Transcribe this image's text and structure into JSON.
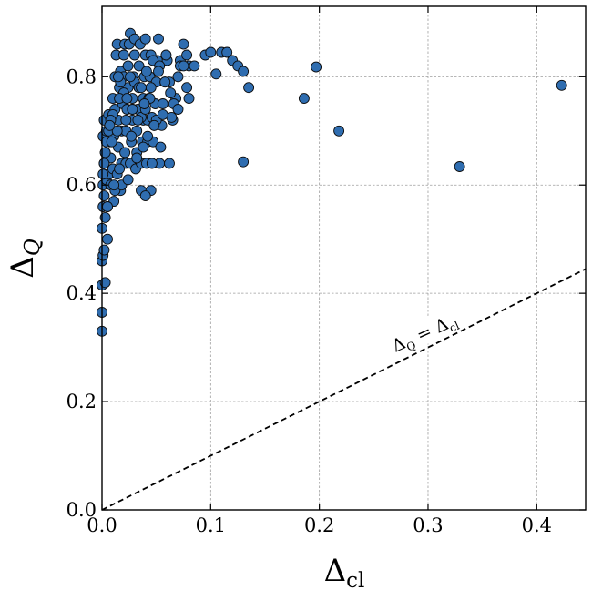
{
  "chart_data": {
    "type": "scatter",
    "xlabel_main": "Δ",
    "xlabel_sub": "cl",
    "ylabel_main": "Δ",
    "ylabel_sub": "Q",
    "annotation": {
      "text_main": "Δ",
      "text_sub_q": "Q",
      "text_eq": " = Δ",
      "text_sub_cl": "cl"
    },
    "xlim": [
      0,
      0.445
    ],
    "ylim": [
      0,
      0.93
    ],
    "xticks": [
      0.0,
      0.1,
      0.2,
      0.3,
      0.4
    ],
    "xtick_labels": [
      "0.0",
      "0.1",
      "0.2",
      "0.3",
      "0.4"
    ],
    "yticks": [
      0.0,
      0.2,
      0.4,
      0.6,
      0.8
    ],
    "ytick_labels": [
      "0.0",
      "0.2",
      "0.4",
      "0.6",
      "0.8"
    ],
    "grid": true,
    "reference_line": {
      "slope": 1,
      "intercept": 0,
      "style": "dashed",
      "color": "#000000"
    },
    "marker_color": "#2f6db0",
    "marker_edge_color": "#0d0d0d",
    "series": [
      {
        "x": [
          0.0,
          0.0,
          0.0,
          0.0,
          0.0,
          0.001,
          0.001,
          0.001,
          0.002,
          0.001,
          0.002,
          0.002,
          0.003,
          0.003,
          0.004,
          0.004,
          0.005,
          0.005,
          0.006,
          0.006,
          0.007,
          0.008,
          0.008,
          0.009,
          0.01,
          0.01,
          0.011,
          0.011,
          0.012,
          0.012,
          0.013,
          0.014,
          0.014,
          0.015,
          0.015,
          0.016,
          0.017,
          0.017,
          0.018,
          0.018,
          0.019,
          0.02,
          0.02,
          0.021,
          0.022,
          0.022,
          0.023,
          0.024,
          0.024,
          0.025,
          0.026,
          0.026,
          0.027,
          0.028,
          0.028,
          0.029,
          0.03,
          0.03,
          0.031,
          0.032,
          0.032,
          0.033,
          0.034,
          0.034,
          0.035,
          0.036,
          0.036,
          0.037,
          0.038,
          0.038,
          0.039,
          0.04,
          0.04,
          0.041,
          0.042,
          0.042,
          0.043,
          0.044,
          0.045,
          0.045,
          0.046,
          0.047,
          0.048,
          0.049,
          0.05,
          0.051,
          0.052,
          0.053,
          0.054,
          0.055,
          0.056,
          0.058,
          0.06,
          0.062,
          0.065,
          0.068,
          0.07,
          0.072,
          0.075,
          0.078,
          0.08,
          0.085,
          0.095,
          0.1,
          0.105,
          0.11,
          0.115,
          0.12,
          0.125,
          0.13,
          0.135,
          0.186,
          0.197,
          0.218,
          0.329,
          0.423,
          0.13,
          0.08,
          0.062,
          0.064,
          0.046,
          0.036,
          0.05,
          0.044,
          0.04,
          0.03,
          0.026,
          0.02,
          0.016,
          0.01,
          0.006,
          0.004,
          0.003,
          0.002,
          0.001,
          0.012,
          0.018,
          0.024,
          0.032,
          0.038,
          0.042,
          0.048,
          0.056,
          0.066,
          0.072,
          0.078,
          0.009,
          0.014,
          0.022,
          0.028,
          0.034,
          0.041,
          0.047,
          0.053,
          0.058,
          0.063,
          0.005,
          0.011,
          0.016,
          0.021,
          0.027,
          0.033,
          0.039,
          0.045,
          0.052,
          0.059,
          0.07,
          0.075,
          0.04,
          0.036,
          0.046,
          0.028,
          0.023,
          0.017,
          0.015,
          0.008,
          0.007,
          0.003,
          0.002
        ],
        "y": [
          0.33,
          0.365,
          0.415,
          0.46,
          0.52,
          0.47,
          0.56,
          0.6,
          0.64,
          0.69,
          0.72,
          0.58,
          0.54,
          0.66,
          0.7,
          0.61,
          0.5,
          0.56,
          0.62,
          0.73,
          0.68,
          0.6,
          0.65,
          0.7,
          0.76,
          0.63,
          0.57,
          0.69,
          0.74,
          0.8,
          0.84,
          0.86,
          0.62,
          0.67,
          0.72,
          0.78,
          0.81,
          0.59,
          0.64,
          0.7,
          0.75,
          0.8,
          0.84,
          0.86,
          0.64,
          0.7,
          0.74,
          0.78,
          0.82,
          0.86,
          0.88,
          0.64,
          0.68,
          0.72,
          0.76,
          0.8,
          0.84,
          0.87,
          0.63,
          0.66,
          0.7,
          0.74,
          0.78,
          0.82,
          0.86,
          0.59,
          0.64,
          0.68,
          0.72,
          0.76,
          0.8,
          0.84,
          0.87,
          0.64,
          0.68,
          0.72,
          0.76,
          0.8,
          0.84,
          0.59,
          0.64,
          0.68,
          0.71,
          0.75,
          0.79,
          0.83,
          0.87,
          0.64,
          0.67,
          0.71,
          0.75,
          0.79,
          0.83,
          0.64,
          0.72,
          0.76,
          0.8,
          0.83,
          0.86,
          0.78,
          0.82,
          0.82,
          0.84,
          0.845,
          0.805,
          0.845,
          0.845,
          0.83,
          0.82,
          0.81,
          0.78,
          0.76,
          0.818,
          0.7,
          0.634,
          0.784,
          0.643,
          0.76,
          0.79,
          0.725,
          0.725,
          0.725,
          0.72,
          0.76,
          0.74,
          0.79,
          0.8,
          0.77,
          0.76,
          0.73,
          0.7,
          0.68,
          0.66,
          0.64,
          0.62,
          0.59,
          0.6,
          0.61,
          0.65,
          0.67,
          0.69,
          0.71,
          0.73,
          0.75,
          0.82,
          0.84,
          0.68,
          0.7,
          0.72,
          0.74,
          0.78,
          0.81,
          0.83,
          0.82,
          0.79,
          0.77,
          0.56,
          0.6,
          0.63,
          0.66,
          0.69,
          0.72,
          0.75,
          0.78,
          0.81,
          0.84,
          0.74,
          0.82,
          0.58,
          0.78,
          0.64,
          0.74,
          0.76,
          0.79,
          0.8,
          0.72,
          0.71,
          0.42,
          0.48
        ]
      }
    ]
  }
}
